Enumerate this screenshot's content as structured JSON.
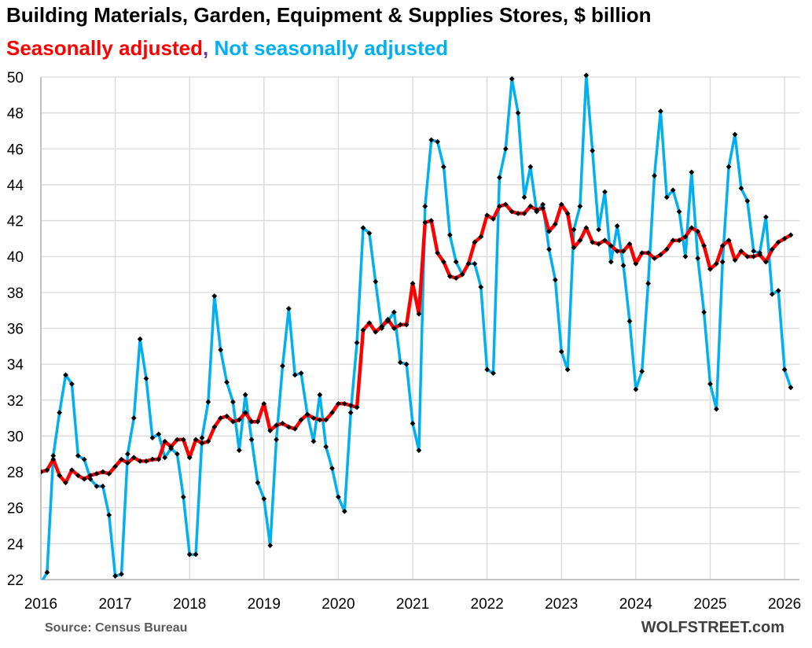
{
  "chart_data": {
    "type": "line",
    "title": "Building Materials, Garden, Equipment & Supplies Stores, $ billion",
    "legend": {
      "sa_label": "Seasonally adjusted",
      "separator": ",",
      "nsa_label": "Not seasonally adjusted"
    },
    "source": "Source: Census Bureau",
    "brand": "WOLFSTREET.com",
    "ylim": [
      22,
      50
    ],
    "yticks": [
      22,
      24,
      26,
      28,
      30,
      32,
      34,
      36,
      38,
      40,
      42,
      44,
      46,
      48,
      50
    ],
    "xlim": [
      2016,
      2026.2
    ],
    "xticks": [
      2016,
      2017,
      2018,
      2019,
      2020,
      2021,
      2022,
      2023,
      2024,
      2025,
      2026
    ],
    "grid": true,
    "colors": {
      "sa": "#ff0000",
      "nsa": "#00b0f0",
      "marker": "#000000",
      "grid": "#d9d9d9"
    },
    "series": [
      {
        "name": "Seasonally adjusted",
        "start": "2016-01",
        "values": [
          28.0,
          28.1,
          28.7,
          27.8,
          27.4,
          28.1,
          27.8,
          27.6,
          27.8,
          27.9,
          28.0,
          27.9,
          28.3,
          28.7,
          28.5,
          28.8,
          28.6,
          28.6,
          28.7,
          28.7,
          29.7,
          29.4,
          29.8,
          29.8,
          28.8,
          29.8,
          29.6,
          29.7,
          30.5,
          31.0,
          31.1,
          30.8,
          30.9,
          31.3,
          30.8,
          30.8,
          31.8,
          30.3,
          30.6,
          30.7,
          30.5,
          30.4,
          30.9,
          31.2,
          31.0,
          30.9,
          30.9,
          31.3,
          31.8,
          31.8,
          31.7,
          31.6,
          35.9,
          36.3,
          35.8,
          36.1,
          36.5,
          36.0,
          36.2,
          36.2,
          38.5,
          36.8,
          41.9,
          42.0,
          40.2,
          39.7,
          38.9,
          38.8,
          39.0,
          39.6,
          40.8,
          41.1,
          42.3,
          42.1,
          42.8,
          42.9,
          42.5,
          42.4,
          42.4,
          42.8,
          42.6,
          42.7,
          41.4,
          41.8,
          42.9,
          42.4,
          40.5,
          40.9,
          41.6,
          40.8,
          40.7,
          40.9,
          40.6,
          40.3,
          40.3,
          40.7,
          39.6,
          40.2,
          40.2,
          39.9,
          40.1,
          40.4,
          40.9,
          40.9,
          41.1,
          41.6,
          41.4,
          40.6,
          39.3,
          39.6,
          40.6,
          40.9,
          39.8,
          40.3,
          40.0,
          40.0,
          40.1,
          39.7,
          40.4,
          40.8,
          41.0,
          41.2
        ]
      },
      {
        "name": "Not seasonally adjusted",
        "start": "2016-01",
        "values": [
          21.8,
          22.4,
          28.9,
          31.3,
          33.4,
          32.9,
          28.9,
          28.7,
          27.6,
          27.2,
          27.2,
          25.6,
          22.2,
          22.3,
          29.0,
          31.0,
          35.4,
          33.2,
          29.9,
          30.1,
          28.8,
          29.3,
          29.0,
          26.6,
          23.4,
          23.4,
          29.9,
          31.9,
          37.8,
          34.8,
          33.0,
          31.9,
          29.2,
          32.3,
          29.8,
          27.4,
          26.5,
          23.9,
          29.8,
          33.9,
          37.1,
          33.4,
          33.5,
          31.2,
          29.7,
          32.3,
          29.4,
          28.2,
          26.6,
          25.8,
          31.3,
          35.2,
          41.6,
          41.3,
          38.6,
          36.0,
          36.4,
          36.9,
          34.1,
          34.0,
          30.7,
          29.2,
          42.8,
          46.5,
          46.4,
          45.0,
          41.2,
          39.7,
          39.0,
          39.6,
          39.6,
          38.3,
          33.7,
          33.5,
          44.4,
          46.0,
          49.9,
          48.0,
          43.3,
          45.0,
          42.5,
          42.9,
          40.4,
          38.7,
          34.7,
          33.7,
          41.5,
          42.8,
          50.1,
          45.9,
          41.5,
          43.6,
          39.7,
          41.7,
          39.5,
          36.4,
          32.6,
          33.6,
          38.5,
          44.5,
          48.1,
          43.3,
          43.7,
          42.5,
          40.0,
          44.7,
          39.9,
          36.9,
          32.9,
          31.5,
          39.7,
          45.0,
          46.8,
          43.8,
          43.1,
          40.3,
          40.2,
          42.2,
          37.9,
          38.1,
          33.7,
          32.7
        ]
      }
    ]
  }
}
